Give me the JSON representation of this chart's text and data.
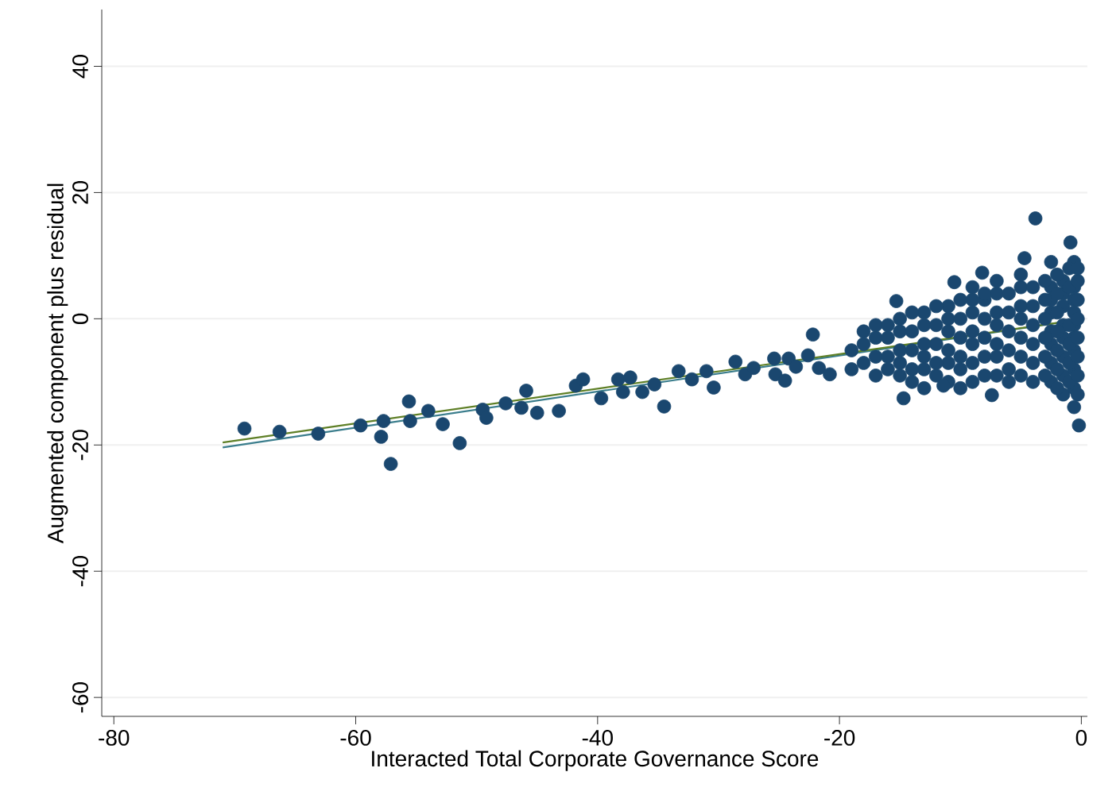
{
  "chart_data": {
    "type": "scatter",
    "xlabel": "Interacted Total Corporate Governance Score",
    "ylabel": "Augmented component plus residual",
    "xlim": [
      -81,
      0.5
    ],
    "ylim": [
      -63,
      49
    ],
    "xticks": [
      -80,
      -60,
      -40,
      -20,
      0
    ],
    "yticks": [
      -60,
      -40,
      -20,
      0,
      20,
      40
    ],
    "grid": "y",
    "series": [
      {
        "marker": "circle",
        "color": "#1a476f",
        "x": [
          -19,
          -19,
          -17,
          -17,
          -17,
          -17,
          -15,
          -15,
          -15,
          -15,
          -15,
          -13,
          -13,
          -13,
          -13,
          -13,
          -13,
          -11,
          -11,
          -11,
          -11,
          -11,
          -11,
          -9,
          -9,
          -9,
          -9,
          -9,
          -9,
          -9,
          -7,
          -7,
          -7,
          -7,
          -7,
          -7,
          -7,
          -5,
          -5,
          -5,
          -5,
          -5,
          -5,
          -5,
          -2.5,
          -2.5,
          -2.5,
          -2.5,
          -2.5,
          -2.5,
          -2.5,
          -2.5,
          -1.5,
          -1.5,
          -1.5,
          -1.5,
          -1.5,
          -1.5,
          -1.5,
          -1.5,
          -0.6,
          -0.6,
          -0.6,
          -0.6,
          -0.6,
          -0.6,
          -0.6,
          -0.6,
          -0.6,
          -0.6,
          -69.2,
          -66.3,
          -63.1,
          -59.6,
          -57.9,
          -57.7,
          -57.1,
          -55.6,
          -55.5,
          -54.0,
          -52.8,
          -51.4,
          -49.5,
          -49.2,
          -47.6,
          -46.3,
          -45.9,
          -45.0,
          -43.2,
          -41.8,
          -41.2,
          -39.7,
          -38.3,
          -37.3,
          -37.9,
          -36.3,
          -35.3,
          -34.5,
          -33.3,
          -32.2,
          -31.0,
          -30.4,
          -28.6,
          -27.8,
          -27.1,
          -25.4,
          -25.3,
          -24.2,
          -24.5,
          -23.6,
          -22.6,
          -22.2,
          -21.7,
          -20.8,
          -18,
          -18,
          -18,
          -16,
          -16,
          -16,
          -16,
          -14,
          -14,
          -14,
          -14,
          -14,
          -12,
          -12,
          -12,
          -12,
          -12,
          -10,
          -10,
          -10,
          -10,
          -10,
          -10,
          -8,
          -8,
          -8,
          -8,
          -8,
          -8,
          -6,
          -6,
          -6,
          -6,
          -6,
          -6,
          -4,
          -4,
          -4,
          -4,
          -4,
          -4,
          -3,
          -3,
          -3,
          -3,
          -3,
          -3,
          -2,
          -2,
          -2,
          -2,
          -2,
          -2,
          -2,
          -1,
          -1,
          -1,
          -1,
          -1,
          -1,
          -0.3,
          -0.3,
          -0.3,
          -0.3,
          -0.3,
          -0.3,
          -0.3,
          -0.3,
          -3.8,
          -0.9,
          -4.7,
          -10.5,
          -8.2,
          -15.3,
          -14.7,
          -11.4,
          -7.4,
          -0.2
        ],
        "values": [
          -5,
          -8,
          -3,
          -6,
          -9,
          -1,
          -2,
          -5,
          -7,
          0,
          -9,
          -1,
          -4,
          -6,
          1,
          -8,
          -11,
          0,
          -2,
          -5,
          2,
          -7,
          -10,
          1,
          -2,
          -4,
          3,
          -7,
          -10,
          5,
          1,
          -1,
          -4,
          4,
          -6,
          -9,
          6,
          2,
          0,
          -3,
          5,
          -6,
          -9,
          7,
          3,
          1,
          -2,
          5,
          -4,
          -7,
          -10,
          9,
          4,
          2,
          -1,
          6,
          -3,
          -6,
          -9,
          -12,
          5,
          3,
          1,
          -1,
          -3,
          -5,
          -8,
          -11,
          -14,
          9,
          -17.4,
          -17.9,
          -18.2,
          -16.9,
          -18.7,
          -16.2,
          -23.0,
          -13.1,
          -16.2,
          -14.6,
          -16.7,
          -19.7,
          -14.4,
          -15.7,
          -13.4,
          -14.1,
          -11.4,
          -14.9,
          -14.6,
          -10.6,
          -9.6,
          -12.6,
          -9.6,
          -9.3,
          -11.6,
          -11.6,
          -10.4,
          -13.9,
          -8.3,
          -9.6,
          -8.3,
          -10.9,
          -6.8,
          -8.8,
          -7.8,
          -6.3,
          -8.8,
          -6.3,
          -9.8,
          -7.6,
          -5.8,
          -2.5,
          -7.8,
          -8.8,
          -4,
          -7,
          -2,
          -3,
          -6,
          -1,
          -8,
          -2,
          -5,
          -8,
          1,
          -10,
          -1,
          -4,
          -7,
          2,
          -9,
          0,
          -3,
          -6,
          3,
          -8,
          -11,
          0,
          -3,
          -6,
          3,
          -9,
          4,
          1,
          -2,
          -5,
          4,
          -8,
          -10,
          2,
          -1,
          -4,
          5,
          -7,
          -10,
          3,
          0,
          -3,
          6,
          -6,
          -9,
          4,
          1,
          -2,
          7,
          -5,
          -8,
          -11,
          5,
          -1,
          8,
          -4,
          -7,
          -10,
          6,
          3,
          0,
          -3,
          -6,
          -9,
          -12,
          8,
          15.9,
          12.1,
          9.6,
          5.8,
          7.3,
          2.8,
          -12.6,
          -10.6,
          -12.1,
          -16.9
        ]
      },
      {
        "type": "line",
        "marker": "none",
        "line_style": "solid",
        "color": "#3a7d8c",
        "x": [
          -71,
          0
        ],
        "values": [
          -20.4,
          -0.1
        ]
      },
      {
        "type": "line",
        "marker": "none",
        "line_style": "solid",
        "color": "#5e7f26",
        "x": [
          -71,
          0
        ],
        "values": [
          -19.6,
          -0.1
        ]
      }
    ]
  }
}
